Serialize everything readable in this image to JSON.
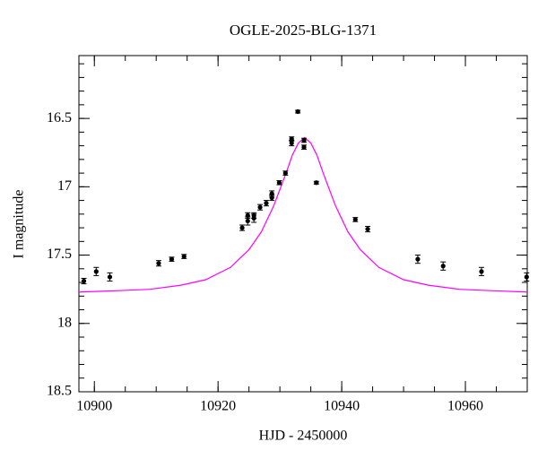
{
  "chart_data": {
    "type": "scatter",
    "title": "OGLE-2025-BLG-1371",
    "x_label": "HJD - 2450000",
    "y_label": "I magnitude",
    "xlim": [
      10897.5,
      10970
    ],
    "ylim": [
      18.5,
      16.04
    ],
    "xticks": [
      10900,
      10920,
      10940,
      10960
    ],
    "yticks": [
      16.5,
      17,
      17.5,
      18,
      18.5
    ],
    "xticks_minor": [
      10900,
      10905,
      10910,
      10915,
      10920,
      10925,
      10930,
      10935,
      10940,
      10945,
      10950,
      10955,
      10960,
      10965,
      10970
    ],
    "yticks_minor": [
      16.1,
      16.2,
      16.3,
      16.4,
      16.5,
      16.6,
      16.7,
      16.8,
      16.9,
      17,
      17.1,
      17.2,
      17.3,
      17.4,
      17.5,
      17.6,
      17.7,
      17.8,
      17.9,
      18,
      18.1,
      18.2,
      18.3,
      18.4,
      18.5
    ],
    "points": {
      "color": "#000000",
      "x": [
        10898.3,
        10900.3,
        10902.5,
        10910.4,
        10912.5,
        10914.5,
        10923.9,
        10924.8,
        10924.8,
        10925.8,
        10925.8,
        10926.8,
        10927.8,
        10928.7,
        10928.7,
        10929.9,
        10930.9,
        10931.9,
        10931.9,
        10932.9,
        10933.9,
        10933.9,
        10935.9,
        10942.2,
        10944.2,
        10952.3,
        10956.4,
        10962.6,
        10969.9
      ],
      "values": [
        17.69,
        17.62,
        17.66,
        17.56,
        17.53,
        17.51,
        17.3,
        17.25,
        17.21,
        17.21,
        17.23,
        17.15,
        17.12,
        17.08,
        17.05,
        16.97,
        16.9,
        16.68,
        16.65,
        16.45,
        16.66,
        16.71,
        16.97,
        17.24,
        17.31,
        17.53,
        17.58,
        17.62,
        17.66
      ],
      "errors": [
        0.02,
        0.03,
        0.03,
        0.02,
        0.015,
        0.015,
        0.02,
        0.03,
        0.02,
        0.02,
        0.03,
        0.02,
        0.02,
        0.02,
        0.02,
        0.015,
        0.015,
        0.02,
        0.015,
        0.01,
        0.015,
        0.015,
        0.01,
        0.015,
        0.02,
        0.03,
        0.03,
        0.03,
        0.03
      ]
    },
    "model": {
      "color": "#ff00ff",
      "x": [
        10897.5,
        10904,
        10909,
        10914,
        10918,
        10922,
        10925,
        10927,
        10929,
        10930,
        10931,
        10932,
        10933,
        10934,
        10935,
        10936,
        10937,
        10938,
        10939,
        10941,
        10943,
        10946,
        10950,
        10954,
        10959,
        10964,
        10970
      ],
      "values": [
        17.77,
        17.76,
        17.75,
        17.72,
        17.68,
        17.59,
        17.46,
        17.33,
        17.14,
        17.02,
        16.9,
        16.77,
        16.68,
        16.64,
        16.68,
        16.77,
        16.9,
        17.02,
        17.14,
        17.33,
        17.46,
        17.59,
        17.68,
        17.72,
        17.75,
        17.76,
        17.77
      ]
    }
  }
}
